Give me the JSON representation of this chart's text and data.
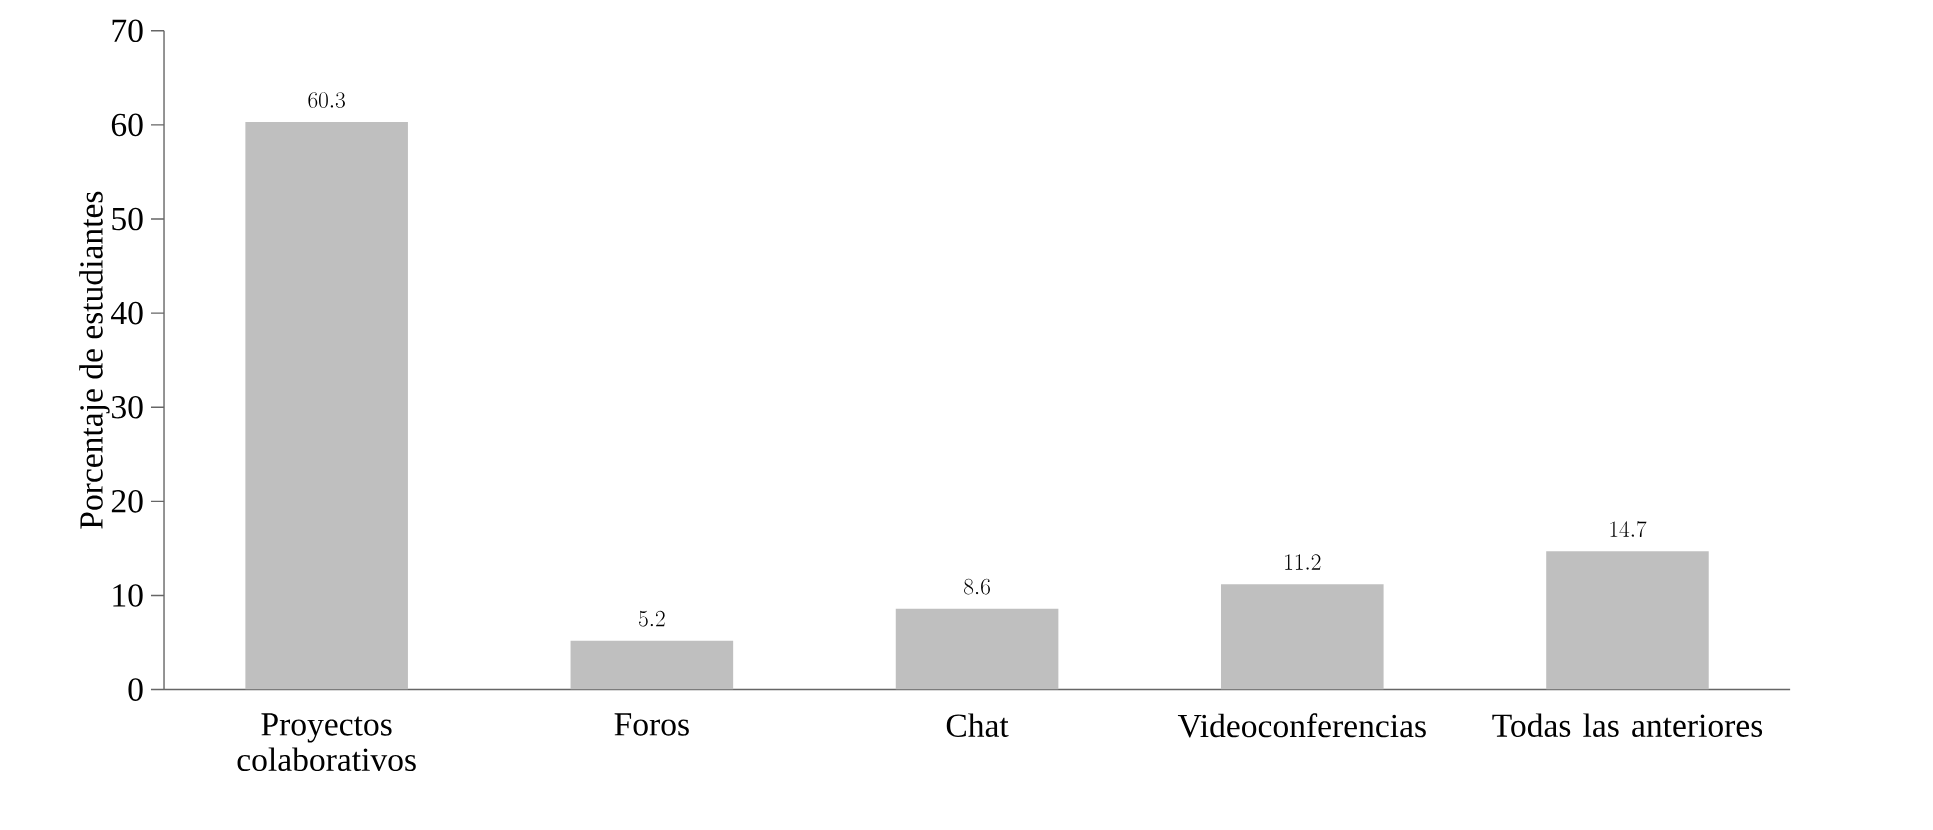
{
  "chart_data": {
    "type": "bar",
    "ylabel": "Porcentaje de estudiantes",
    "categories": [
      "Proyectos colaborativos",
      "Foros",
      "Chat",
      "Videoconferencias",
      "Todas las anteriores"
    ],
    "values": [
      60.3,
      5.2,
      8.6,
      11.2,
      14.7
    ],
    "color": "#bfbfbf",
    "ylim": [
      0,
      70
    ],
    "yticks": [
      0,
      10,
      20,
      30,
      40,
      50,
      60,
      70
    ],
    "grid": false,
    "data_labels": true
  }
}
